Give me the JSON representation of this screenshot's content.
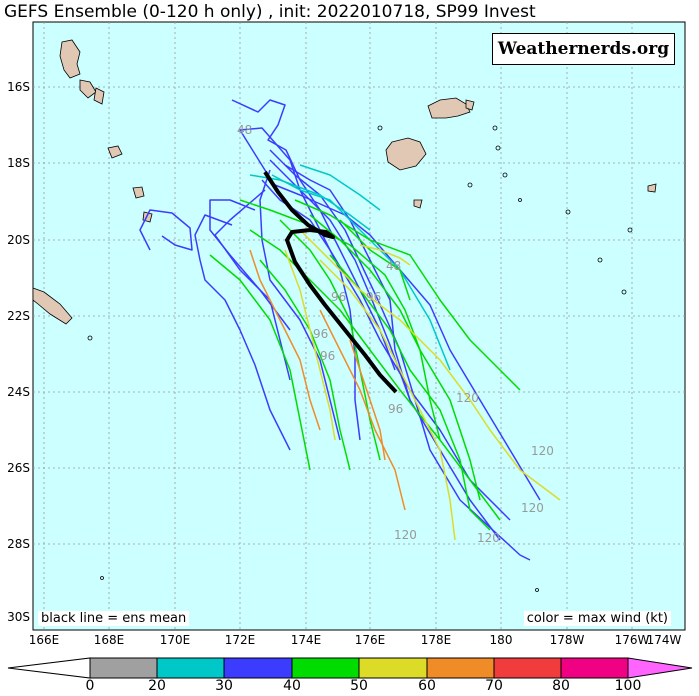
{
  "title": "GEFS Ensemble (0-120 h only) , init: 2022010718, SP99 Invest",
  "brand": "Weathernerds.org",
  "mean_note": "black line = ens mean",
  "color_note": "color = max wind (kt)",
  "lat_labels": [
    "16S",
    "18S",
    "20S",
    "22S",
    "24S",
    "26S",
    "28S",
    "30S"
  ],
  "lon_labels": [
    "166E",
    "168E",
    "170E",
    "172E",
    "174E",
    "176E",
    "178E",
    "180",
    "178W",
    "176W",
    "174W"
  ],
  "colorbar": {
    "ticks": [
      "0",
      "20",
      "30",
      "40",
      "50",
      "60",
      "70",
      "80",
      "100"
    ],
    "colors": [
      "#a0a0a0",
      "#00c8c8",
      "#3c3cff",
      "#00dc00",
      "#dcdc28",
      "#f08c28",
      "#f03c3c",
      "#f00082",
      "#ff64ff"
    ]
  },
  "hour_labels": [
    "48",
    "48",
    "96",
    "96",
    "96",
    "96",
    "96",
    "120",
    "120",
    "120",
    "120",
    "120",
    "120"
  ],
  "colors": {
    "ocean": "#ccffff",
    "land": "#e0c8b4",
    "mean": "#000000",
    "grid": "#999999"
  }
}
